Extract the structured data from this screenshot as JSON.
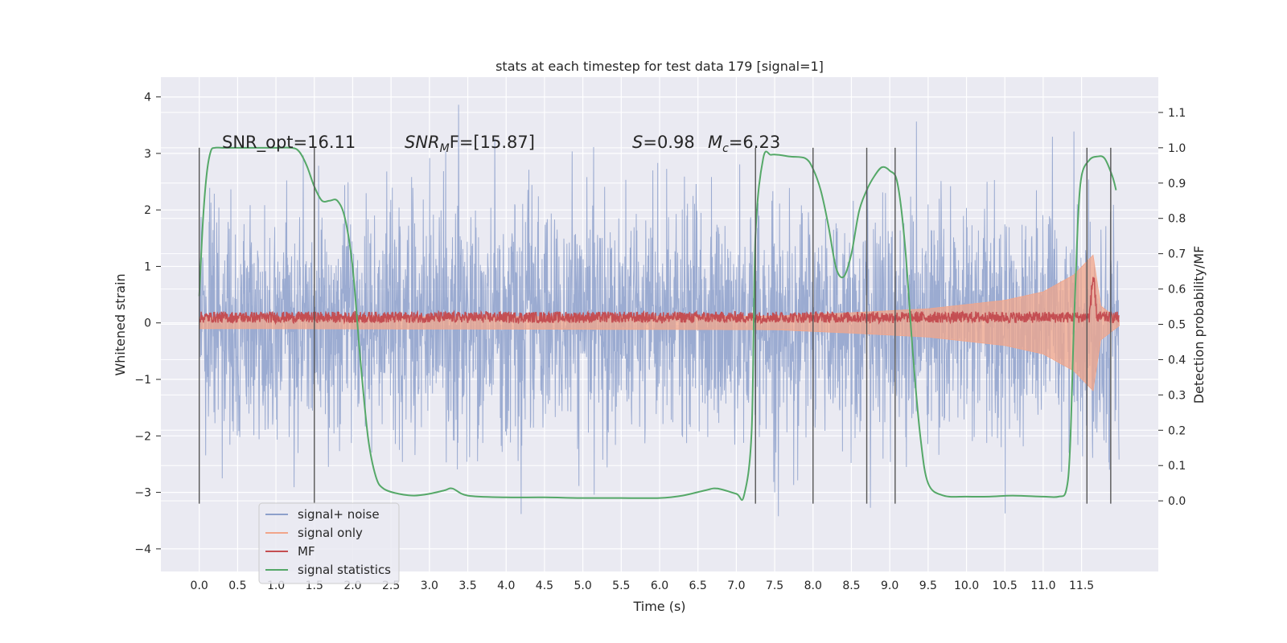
{
  "chart_data": {
    "type": "line",
    "title": "stats at each timestep for test data 179 [signal=1]",
    "xlabel": "Time (s)",
    "ylabel": "Whitened strain",
    "y2label": "Detection probability/MF",
    "xlim": [
      -0.5,
      12.5
    ],
    "ylim": [
      -4.4,
      4.35
    ],
    "y2lim": [
      -0.2,
      1.2
    ],
    "xticks": [
      0.0,
      0.5,
      1.0,
      1.5,
      2.0,
      2.5,
      3.0,
      3.5,
      4.0,
      4.5,
      5.0,
      5.5,
      6.0,
      6.5,
      7.0,
      7.5,
      8.0,
      8.5,
      9.0,
      9.5,
      10.0,
      10.5,
      11.0,
      11.5
    ],
    "yticks": [
      4,
      3,
      2,
      1,
      0,
      -1,
      -2,
      -3,
      -4
    ],
    "y2ticks": [
      1.1,
      1.0,
      0.9,
      0.8,
      0.7,
      0.6,
      0.5,
      0.4,
      0.3,
      0.2,
      0.1,
      0.0
    ],
    "grid": true,
    "legend_position": "lower-left",
    "annotations": {
      "snr_opt": "SNR_opt=16.11",
      "snr_mf_base": "SNR",
      "snr_mf_sub": "M",
      "snr_mf_rest": "F=[15.87]",
      "s_label": "S",
      "s_value": "=0.98",
      "mc_base": "M",
      "mc_sub": "c",
      "mc_value": "=6.23"
    },
    "vertical_lines_x": [
      0.0,
      1.5,
      7.25,
      8.0,
      8.7,
      9.07,
      11.57,
      11.88
    ],
    "vertical_lines_range": [
      -3.2,
      3.1
    ],
    "series": [
      {
        "name": "signal+ noise",
        "color": "#8da0cb",
        "kind": "noise",
        "x_range": [
          0.0,
          11.99
        ],
        "typical_amplitude": 1.3,
        "peak_amplitude": 3.9
      },
      {
        "name": "signal only",
        "color": "#f1a58a",
        "kind": "chirp-envelope",
        "envelope": [
          [
            0.0,
            0.1
          ],
          [
            7.5,
            0.12
          ],
          [
            8.5,
            0.18
          ],
          [
            9.5,
            0.25
          ],
          [
            10.5,
            0.4
          ],
          [
            11.0,
            0.55
          ],
          [
            11.4,
            0.85
          ],
          [
            11.65,
            1.2
          ],
          [
            11.75,
            0.3
          ],
          [
            11.99,
            0.05
          ]
        ]
      },
      {
        "name": "MF",
        "color": "#c44e52",
        "kind": "mf",
        "x_range": [
          0.0,
          11.99
        ],
        "base_value": 0.1,
        "spike": [
          11.65,
          1.0
        ]
      },
      {
        "name": "signal statistics",
        "color": "#55a868",
        "kind": "line",
        "axis": "right",
        "x": [
          0.0,
          0.05,
          0.1,
          0.15,
          0.2,
          0.3,
          0.5,
          0.8,
          1.0,
          1.2,
          1.3,
          1.4,
          1.5,
          1.6,
          1.7,
          1.8,
          1.9,
          2.0,
          2.1,
          2.2,
          2.3,
          2.4,
          2.6,
          2.8,
          3.0,
          3.2,
          3.3,
          3.5,
          4.0,
          4.5,
          5.0,
          5.5,
          6.0,
          6.3,
          6.6,
          6.75,
          7.0,
          7.1,
          7.2,
          7.25,
          7.35,
          7.45,
          7.55,
          7.7,
          7.9,
          8.0,
          8.1,
          8.2,
          8.3,
          8.4,
          8.5,
          8.6,
          8.7,
          8.8,
          8.9,
          9.0,
          9.1,
          9.2,
          9.3,
          9.4,
          9.5,
          9.7,
          10.0,
          10.3,
          10.6,
          11.0,
          11.2,
          11.3,
          11.35,
          11.4,
          11.45,
          11.5,
          11.6,
          11.7,
          11.8,
          11.9,
          11.95
        ],
        "y": [
          0.58,
          0.8,
          0.93,
          0.99,
          1.0,
          1.0,
          1.0,
          1.0,
          1.0,
          1.0,
          0.99,
          0.95,
          0.89,
          0.85,
          0.85,
          0.85,
          0.8,
          0.66,
          0.4,
          0.18,
          0.07,
          0.035,
          0.02,
          0.015,
          0.02,
          0.03,
          0.035,
          0.015,
          0.01,
          0.01,
          0.008,
          0.008,
          0.008,
          0.015,
          0.03,
          0.035,
          0.02,
          0.015,
          0.2,
          0.75,
          0.97,
          0.98,
          0.98,
          0.975,
          0.97,
          0.94,
          0.88,
          0.78,
          0.66,
          0.635,
          0.7,
          0.82,
          0.88,
          0.92,
          0.945,
          0.935,
          0.9,
          0.72,
          0.42,
          0.18,
          0.05,
          0.015,
          0.012,
          0.012,
          0.015,
          0.012,
          0.012,
          0.03,
          0.15,
          0.5,
          0.78,
          0.92,
          0.965,
          0.975,
          0.97,
          0.92,
          0.88
        ]
      }
    ]
  }
}
